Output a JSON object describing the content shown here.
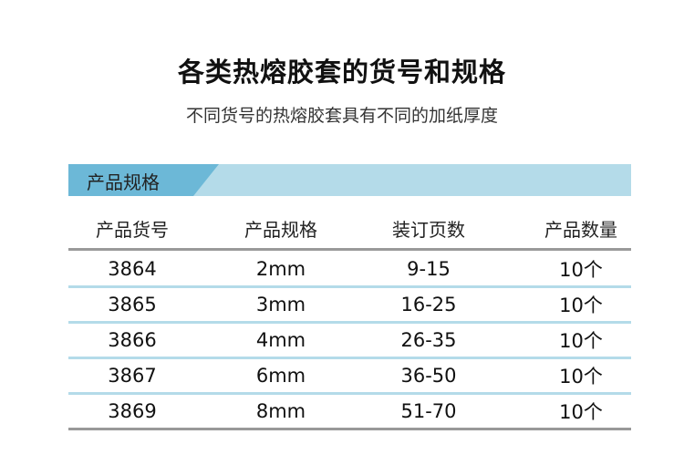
{
  "title": "各类热熔胶套的货号和规格",
  "subtitle": "不同货号的热熔胶套具有不同的加纸厚度",
  "section_label": "产品规格",
  "colors": {
    "bar_light": "#b4dbe9",
    "bar_dark": "#6cb8d7"
  },
  "headers": [
    "产品货号",
    "产品规格",
    "装订页数",
    "产品数量"
  ],
  "rows": [
    [
      "3864",
      "2mm",
      "9-15",
      "10个"
    ],
    [
      "3865",
      "3mm",
      "16-25",
      "10个"
    ],
    [
      "3866",
      "4mm",
      "26-35",
      "10个"
    ],
    [
      "3867",
      "6mm",
      "36-50",
      "10个"
    ],
    [
      "3869",
      "8mm",
      "51-70",
      "10个"
    ]
  ]
}
